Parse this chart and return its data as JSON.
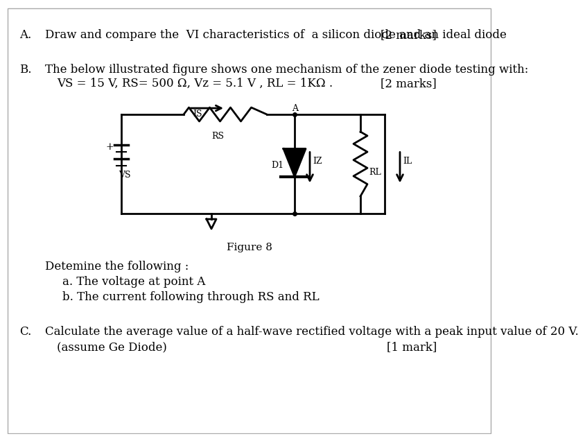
{
  "background_color": "#ffffff",
  "border_color": "#aaaaaa",
  "section_A": {
    "label": "A.",
    "text": "Draw and compare the  VI characteristics of  a silicon diode and an ideal diode",
    "marks": "[2 marks]"
  },
  "section_B": {
    "label": "B.",
    "text": "The below illustrated figure shows one mechanism of the zener diode testing with:",
    "params": "VS = 15 V, RS= 500 Ω, Vz = 5.1 V , RL = 1KΩ .",
    "marks": "[2 marks]",
    "figure_caption": "Figure 8",
    "sub_text": "Detemine the following :",
    "sub_a": "a. The voltage at point A",
    "sub_b": "b. The current following through RS and RL"
  },
  "section_C": {
    "label": "C.",
    "text": "Calculate the average value of a half-wave rectified voltage with a peak input value of 20 V.",
    "sub_text": "(assume Ge Diode)",
    "marks": "[1 mark]"
  },
  "font_size": 12,
  "font_family": "DejaVu Serif"
}
